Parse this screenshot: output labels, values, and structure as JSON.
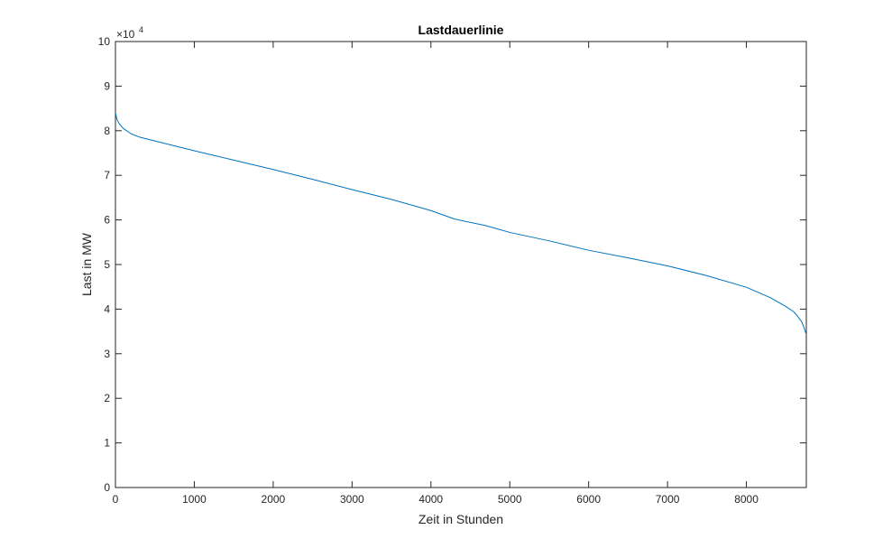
{
  "chart_data": {
    "type": "line",
    "title": "Lastdauerlinie",
    "xlabel": "Zeit in Stunden",
    "ylabel": "Last in MW",
    "y_multiplier": {
      "base": "×10",
      "exponent": "4"
    },
    "xlim": [
      0,
      8760
    ],
    "ylim": [
      0,
      100000
    ],
    "x_ticks": [
      0,
      1000,
      2000,
      3000,
      4000,
      5000,
      6000,
      7000,
      8000
    ],
    "y_ticks": [
      0,
      10000,
      20000,
      30000,
      40000,
      50000,
      60000,
      70000,
      80000,
      90000,
      100000
    ],
    "x_tick_labels": [
      "0",
      "1000",
      "2000",
      "3000",
      "4000",
      "5000",
      "6000",
      "7000",
      "8000"
    ],
    "y_tick_labels": [
      "0",
      "1",
      "2",
      "3",
      "4",
      "5",
      "6",
      "7",
      "8",
      "9",
      "10"
    ],
    "grid": false,
    "series": [
      {
        "color": "#0072BD",
        "x": [
          0,
          20,
          50,
          100,
          200,
          300,
          500,
          1000,
          1500,
          2000,
          2500,
          3000,
          3500,
          4000,
          4300,
          4700,
          5000,
          5500,
          6000,
          6500,
          7000,
          7500,
          8000,
          8300,
          8500,
          8600,
          8650,
          8700,
          8730,
          8760
        ],
        "y": [
          84000,
          82500,
          81500,
          80500,
          79300,
          78600,
          77700,
          75500,
          73400,
          71300,
          69100,
          66800,
          64600,
          62100,
          60200,
          58700,
          57200,
          55300,
          53200,
          51500,
          49700,
          47500,
          44900,
          42600,
          40600,
          39400,
          38400,
          37200,
          35900,
          34300
        ]
      }
    ]
  }
}
